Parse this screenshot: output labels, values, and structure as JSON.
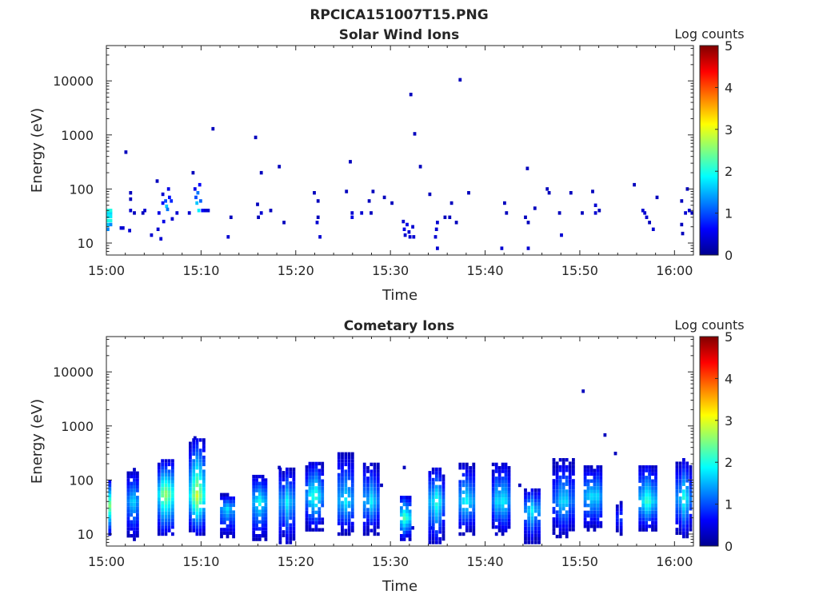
{
  "figure_title": "RPCICA151007T15.PNG",
  "chart_data": [
    {
      "type": "heatmap",
      "title": "Solar Wind Ions",
      "xlabel": "Time",
      "ylabel": "Energy (eV)",
      "y_scale": "log",
      "ylim": [
        6,
        45000
      ],
      "xlim": [
        "15:00",
        "16:02"
      ],
      "x_ticks": [
        "15:00",
        "15:10",
        "15:20",
        "15:30",
        "15:40",
        "15:50",
        "16:00"
      ],
      "y_ticks": [
        "10",
        "100",
        "1000",
        "10000"
      ],
      "colorbar": {
        "label": "Log counts",
        "range": [
          0,
          5
        ],
        "ticks": [
          "0",
          "1",
          "2",
          "3",
          "4",
          "5"
        ],
        "colormap": "jet"
      },
      "grid": false,
      "cells": [
        [
          "15:00.0",
          18,
          1.3
        ],
        [
          "15:00.0",
          22,
          1.6
        ],
        [
          "15:00.0",
          26,
          2.0
        ],
        [
          "15:00.0",
          31,
          1.8
        ],
        [
          "15:00.0",
          36,
          1.7
        ],
        [
          "15:00.0",
          40,
          2.0
        ],
        [
          "15:00.3",
          22,
          1.3
        ],
        [
          "15:00.3",
          26,
          2.0
        ],
        [
          "15:00.3",
          31,
          1.8
        ],
        [
          "15:00.3",
          36,
          1.7
        ],
        [
          "15:00.3",
          40,
          2.0
        ],
        [
          "15:01.4",
          19,
          0.4
        ],
        [
          "15:01.6",
          19,
          0.4
        ],
        [
          "15:01.9",
          480,
          0.3
        ],
        [
          "15:02.3",
          17,
          0.4
        ],
        [
          "15:02.4",
          40,
          0.4
        ],
        [
          "15:02.4",
          65,
          0.3
        ],
        [
          "15:02.4",
          85,
          0.3
        ],
        [
          "15:02.8",
          36,
          0.3
        ],
        [
          "15:03.7",
          36,
          0.3
        ],
        [
          "15:03.9",
          40,
          0.4
        ],
        [
          "15:04.6",
          14,
          0.4
        ],
        [
          "15:05.2",
          140,
          0.3
        ],
        [
          "15:05.3",
          18,
          0.4
        ],
        [
          "15:05.4",
          36,
          0.5
        ],
        [
          "15:05.6",
          12,
          0.4
        ],
        [
          "15:05.8",
          55,
          0.6
        ],
        [
          "15:05.8",
          80,
          0.4
        ],
        [
          "15:05.9",
          25,
          0.5
        ],
        [
          "15:06.1",
          60,
          1.0
        ],
        [
          "15:06.2",
          48,
          1.6
        ],
        [
          "15:06.3",
          42,
          1.2
        ],
        [
          "15:06.4",
          100,
          0.5
        ],
        [
          "15:06.5",
          70,
          0.7
        ],
        [
          "15:06.7",
          60,
          0.8
        ],
        [
          "15:06.8",
          28,
          0.4
        ],
        [
          "15:07.3",
          36,
          0.4
        ],
        [
          "15:08.6",
          36,
          0.4
        ],
        [
          "15:09.0",
          200,
          0.3
        ],
        [
          "15:09.2",
          100,
          0.5
        ],
        [
          "15:09.3",
          70,
          1.0
        ],
        [
          "15:09.4",
          55,
          1.6
        ],
        [
          "15:09.5",
          85,
          1.2
        ],
        [
          "15:09.6",
          40,
          1.8
        ],
        [
          "15:09.7",
          120,
          0.6
        ],
        [
          "15:09.8",
          60,
          1.1
        ],
        [
          "15:10.0",
          40,
          0.6
        ],
        [
          "15:10.3",
          40,
          0.4
        ],
        [
          "15:10.6",
          40,
          0.4
        ],
        [
          "15:11.1",
          1300,
          0.3
        ],
        [
          "15:12.7",
          13,
          0.4
        ],
        [
          "15:13.0",
          30,
          0.3
        ],
        [
          "15:15.6",
          900,
          0.3
        ],
        [
          "15:15.8",
          52,
          0.3
        ],
        [
          "15:15.9",
          30,
          0.3
        ],
        [
          "15:16.2",
          36,
          0.4
        ],
        [
          "15:16.2",
          200,
          0.3
        ],
        [
          "15:17.2",
          40,
          0.3
        ],
        [
          "15:18.1",
          260,
          0.3
        ],
        [
          "15:18.6",
          24,
          0.3
        ],
        [
          "15:21.8",
          85,
          0.3
        ],
        [
          "15:22.1",
          24,
          0.4
        ],
        [
          "15:22.2",
          30,
          0.3
        ],
        [
          "15:22.2",
          60,
          0.3
        ],
        [
          "15:22.4",
          13,
          0.4
        ],
        [
          "15:25.2",
          90,
          0.3
        ],
        [
          "15:25.6",
          320,
          0.3
        ],
        [
          "15:25.8",
          30,
          0.5
        ],
        [
          "15:25.8",
          36,
          0.4
        ],
        [
          "15:26.8",
          36,
          0.4
        ],
        [
          "15:27.6",
          60,
          0.3
        ],
        [
          "15:27.8",
          36,
          0.3
        ],
        [
          "15:28.0",
          90,
          0.3
        ],
        [
          "15:29.2",
          70,
          0.3
        ],
        [
          "15:30.0",
          55,
          0.3
        ],
        [
          "15:31.2",
          25,
          0.4
        ],
        [
          "15:31.3",
          18,
          0.5
        ],
        [
          "15:31.4",
          14,
          0.4
        ],
        [
          "15:31.6",
          22,
          0.5
        ],
        [
          "15:31.8",
          16,
          0.4
        ],
        [
          "15:31.9",
          13,
          0.4
        ],
        [
          "15:32.0",
          5600,
          0.3
        ],
        [
          "15:32.2",
          20,
          0.4
        ],
        [
          "15:32.3",
          13,
          0.4
        ],
        [
          "15:32.4",
          1050,
          0.3
        ],
        [
          "15:33.0",
          260,
          0.3
        ],
        [
          "15:34.0",
          80,
          0.3
        ],
        [
          "15:34.6",
          13,
          0.4
        ],
        [
          "15:34.7",
          18,
          0.4
        ],
        [
          "15:34.8",
          24,
          0.4
        ],
        [
          "15:34.8",
          8,
          0.4
        ],
        [
          "15:35.6",
          30,
          0.3
        ],
        [
          "15:36.1",
          30,
          0.3
        ],
        [
          "15:36.3",
          55,
          0.3
        ],
        [
          "15:36.8",
          24,
          0.3
        ],
        [
          "15:37.2",
          10500,
          0.3
        ],
        [
          "15:38.1",
          85,
          0.3
        ],
        [
          "15:41.6",
          8,
          0.4
        ],
        [
          "15:41.9",
          55,
          0.3
        ],
        [
          "15:42.1",
          36,
          0.3
        ],
        [
          "15:44.1",
          30,
          0.3
        ],
        [
          "15:44.3",
          240,
          0.3
        ],
        [
          "15:44.4",
          8,
          0.4
        ],
        [
          "15:44.4",
          24,
          0.3
        ],
        [
          "15:45.1",
          44,
          0.3
        ],
        [
          "15:46.4",
          100,
          0.3
        ],
        [
          "15:46.6",
          85,
          0.3
        ],
        [
          "15:47.7",
          36,
          0.3
        ],
        [
          "15:47.9",
          14,
          0.4
        ],
        [
          "15:48.9",
          85,
          0.3
        ],
        [
          "15:50.1",
          36,
          0.3
        ],
        [
          "15:51.2",
          90,
          0.3
        ],
        [
          "15:51.5",
          50,
          0.4
        ],
        [
          "15:51.5",
          36,
          0.4
        ],
        [
          "15:51.9",
          40,
          0.3
        ],
        [
          "15:55.6",
          120,
          0.3
        ],
        [
          "15:56.5",
          40,
          0.4
        ],
        [
          "15:56.7",
          36,
          0.4
        ],
        [
          "15:56.9",
          30,
          0.4
        ],
        [
          "15:57.2",
          24,
          0.3
        ],
        [
          "15:57.6",
          18,
          0.4
        ],
        [
          "15:58.0",
          70,
          0.3
        ],
        [
          "16:00.6",
          60,
          0.3
        ],
        [
          "16:00.6",
          22,
          0.3
        ],
        [
          "16:00.7",
          15,
          0.3
        ],
        [
          "16:01.0",
          36,
          0.4
        ],
        [
          "16:01.2",
          100,
          0.3
        ],
        [
          "16:01.4",
          40,
          0.4
        ],
        [
          "16:01.7",
          36,
          0.3
        ]
      ]
    },
    {
      "type": "heatmap",
      "title": "Cometary Ions",
      "xlabel": "Time",
      "ylabel": "Energy (eV)",
      "y_scale": "log",
      "ylim": [
        6,
        45000
      ],
      "xlim": [
        "15:00",
        "16:02"
      ],
      "x_ticks": [
        "15:00",
        "15:10",
        "15:20",
        "15:30",
        "15:40",
        "15:50",
        "16:00"
      ],
      "y_ticks": [
        "10",
        "100",
        "1000",
        "10000"
      ],
      "colorbar": {
        "label": "Log counts",
        "range": [
          0,
          5
        ],
        "ticks": [
          "0",
          "1",
          "2",
          "3",
          "4",
          "5"
        ],
        "colormap": "jet"
      },
      "grid": false,
      "bursts": [
        {
          "t": "15:00.2",
          "e": 34,
          "emin": 10,
          "emax": 100,
          "peak": 2.9,
          "width_min": 0.8
        },
        {
          "t": "15:02.8",
          "e": 40,
          "emin": 8,
          "emax": 160,
          "peak": 1.8,
          "width_min": 1.3
        },
        {
          "t": "15:06.3",
          "e": 55,
          "emin": 10,
          "emax": 230,
          "peak": 2.7,
          "width_min": 1.8
        },
        {
          "t": "15:09.6",
          "e": 50,
          "emin": 10,
          "emax": 600,
          "peak": 2.9,
          "width_min": 1.8
        },
        {
          "t": "15:12.8",
          "e": 30,
          "emin": 9,
          "emax": 55,
          "peak": 1.8,
          "width_min": 1.6
        },
        {
          "t": "15:16.2",
          "e": 40,
          "emin": 8,
          "emax": 130,
          "peak": 2.0,
          "width_min": 1.6
        },
        {
          "t": "15:19.1",
          "e": 40,
          "emin": 7,
          "emax": 170,
          "peak": 1.8,
          "width_min": 1.8
        },
        {
          "t": "15:22.0",
          "e": 50,
          "emin": 12,
          "emax": 230,
          "peak": 2.2,
          "width_min": 2.0
        },
        {
          "t": "15:25.3",
          "e": 40,
          "emin": 10,
          "emax": 320,
          "peak": 1.9,
          "width_min": 1.8
        },
        {
          "t": "15:28.0",
          "e": 40,
          "emin": 10,
          "emax": 220,
          "peak": 1.9,
          "width_min": 1.8
        },
        {
          "t": "15:31.6",
          "e": 20,
          "emin": 8,
          "emax": 55,
          "peak": 2.4,
          "width_min": 1.2
        },
        {
          "t": "15:34.9",
          "e": 40,
          "emin": 7,
          "emax": 170,
          "peak": 2.0,
          "width_min": 1.8
        },
        {
          "t": "15:38.1",
          "e": 40,
          "emin": 10,
          "emax": 220,
          "peak": 2.1,
          "width_min": 1.8
        },
        {
          "t": "15:41.7",
          "e": 40,
          "emin": 10,
          "emax": 220,
          "peak": 2.0,
          "width_min": 2.0
        },
        {
          "t": "15:45.0",
          "e": 28,
          "emin": 7,
          "emax": 75,
          "peak": 1.9,
          "width_min": 1.8
        },
        {
          "t": "15:48.3",
          "e": 40,
          "emin": 9,
          "emax": 270,
          "peak": 1.8,
          "width_min": 2.4
        },
        {
          "t": "15:51.4",
          "e": 50,
          "emin": 12,
          "emax": 190,
          "peak": 2.0,
          "width_min": 2.0
        },
        {
          "t": "15:54.2",
          "e": 20,
          "emin": 10,
          "emax": 40,
          "peak": 1.0,
          "width_min": 0.8
        },
        {
          "t": "15:57.2",
          "e": 40,
          "emin": 12,
          "emax": 200,
          "peak": 2.2,
          "width_min": 2.0
        },
        {
          "t": "16:01.0",
          "e": 45,
          "emin": 9,
          "emax": 250,
          "peak": 2.0,
          "width_min": 1.8
        }
      ],
      "cells": [
        [
          "15:50.2",
          4400,
          0.3
        ],
        [
          "15:52.5",
          680,
          0.3
        ],
        [
          "15:53.6",
          310,
          0.3
        ],
        [
          "15:09.2",
          600,
          0.3
        ],
        [
          "15:18.1",
          170,
          0.3
        ],
        [
          "15:28.9",
          80,
          0.3
        ],
        [
          "15:31.3",
          170,
          0.3
        ],
        [
          "15:32.2",
          13,
          0.4
        ],
        [
          "15:34.2",
          13,
          0.4
        ],
        [
          "15:43.5",
          80,
          0.3
        ]
      ]
    }
  ]
}
